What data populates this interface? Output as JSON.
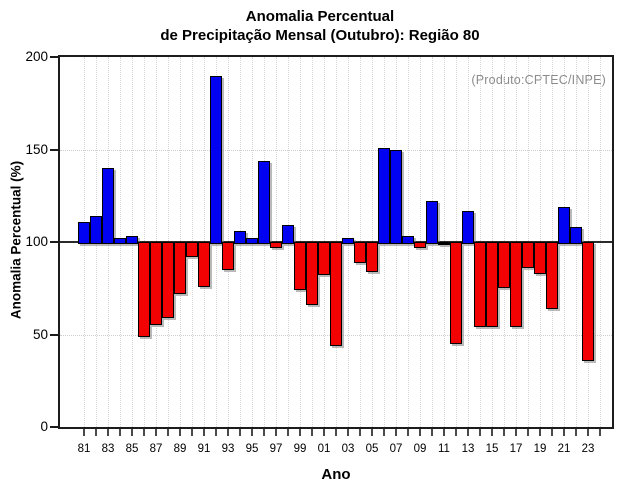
{
  "title": {
    "line1": "Anomalia Percentual",
    "line2": "de Precipitação Mensal (Outubro): Região 80"
  },
  "annotation": "(Produto:CPTEC/INPE)",
  "axes": {
    "y_label": "Anomalia Percentual (%)",
    "x_label": "Ano"
  },
  "chart_data": {
    "type": "bar",
    "title": "Anomalia Percentual de Precipitação Mensal (Outubro): Região 80",
    "xlabel": "Ano",
    "ylabel": "Anomalia Percentual (%)",
    "ylim": [
      0,
      200
    ],
    "yticks": [
      0,
      50,
      100,
      150,
      200
    ],
    "gridlines_y": [
      50,
      100,
      150
    ],
    "baseline": 100,
    "grid": "dotted",
    "legend": "none",
    "categories": [
      "81",
      "82",
      "83",
      "84",
      "85",
      "86",
      "87",
      "88",
      "89",
      "90",
      "91",
      "92",
      "93",
      "94",
      "95",
      "96",
      "97",
      "98",
      "99",
      "00",
      "01",
      "02",
      "03",
      "04",
      "05",
      "06",
      "07",
      "08",
      "09",
      "10",
      "11",
      "12",
      "13",
      "14",
      "15",
      "16",
      "17",
      "18",
      "19",
      "20",
      "21",
      "22",
      "23"
    ],
    "values": [
      111,
      114,
      140,
      102,
      103,
      50,
      56,
      60,
      73,
      93,
      77,
      190,
      86,
      106,
      102,
      144,
      98,
      109,
      75,
      67,
      83,
      45,
      102,
      90,
      85,
      151,
      150,
      103,
      98,
      122,
      100,
      46,
      117,
      55,
      55,
      76,
      55,
      87,
      84,
      65,
      119,
      108,
      37
    ],
    "label_step": 2,
    "bar_color_above": "#0202f2",
    "bar_color_below": "#f20202",
    "bar_color_equal": "#000000"
  }
}
